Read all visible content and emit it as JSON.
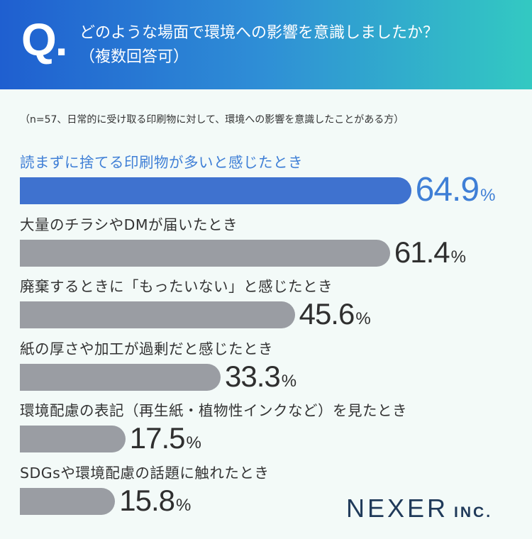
{
  "header": {
    "q_mark": "Q.",
    "question_line1": "どのような場面で環境への影響を意識しましたか？",
    "question_line2": "（複数回答可）"
  },
  "note": "（n=57、日常的に受け取る印刷物に対して、環境への影響を意識したことがある方）",
  "logo": {
    "name": "NEXER",
    "suffix": "INC."
  },
  "colors": {
    "highlight": "#3f72cf",
    "bar": "#9a9da3",
    "header_start": "#1f5fd0",
    "header_end": "#33c9c2"
  },
  "chart_data": {
    "type": "bar",
    "orientation": "horizontal",
    "unit": "%",
    "categories": [
      "読まずに捨てる印刷物が多いと感じたとき",
      "大量のチラシやDMが届いたとき",
      "廃棄するときに「もったいない」と感じたとき",
      "紙の厚さや加工が過剰だと感じたとき",
      "環境配慮の表記（再生紙・植物性インクなど）を見たとき",
      "SDGsや環境配慮の話題に触れたとき"
    ],
    "values": [
      64.9,
      61.4,
      45.6,
      33.3,
      17.5,
      15.8
    ],
    "value_labels": [
      "64.9",
      "61.4",
      "45.6",
      "33.3",
      "17.5",
      "15.8"
    ],
    "highlight_index": 0
  }
}
